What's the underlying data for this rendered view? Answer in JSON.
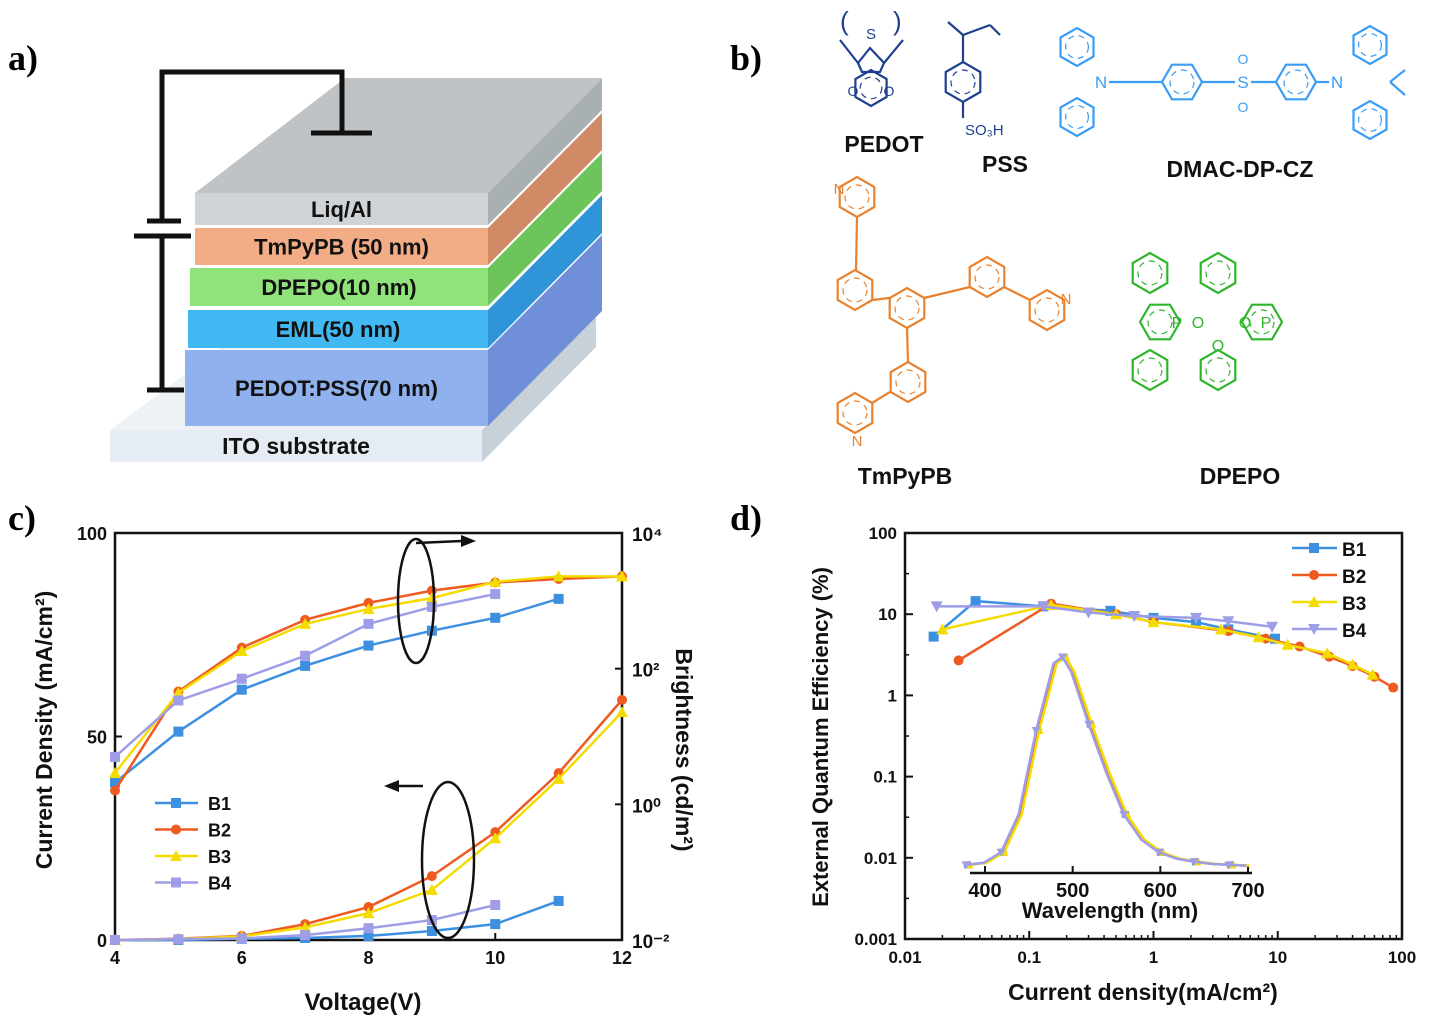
{
  "panel_labels": [
    "a)",
    "b)",
    "c)",
    "d)"
  ],
  "device": {
    "layers": [
      {
        "label": "Liq/Al",
        "color": "#cfd3d5",
        "side": "#a9b0b2",
        "top": "#bfc3c5"
      },
      {
        "label": "TmPyPB (50 nm)",
        "color": "#f3ad86",
        "side": "#d08a66"
      },
      {
        "label": "DPEPO(10 nm)",
        "color": "#90e27a",
        "side": "#6cc45a"
      },
      {
        "label": "EML(50 nm)",
        "color": "#41b8f2",
        "side": "#2f95d8"
      },
      {
        "label": "PEDOT:PSS(70 nm)",
        "color": "#8fb2ee",
        "side": "#6f90d8"
      },
      {
        "label": "ITO substrate",
        "color": "#e6ecf3",
        "side": "#c8d0d8"
      }
    ]
  },
  "molecules": [
    {
      "name": "PEDOT",
      "color": "#1f3f8f"
    },
    {
      "name": "PSS",
      "color": "#1f3f8f",
      "group": "SO₃H"
    },
    {
      "name": "DMAC-DP-CZ",
      "color": "#3a9cf5"
    },
    {
      "name": "TmPyPB",
      "color": "#e8822e"
    },
    {
      "name": "DPEPO",
      "color": "#2fb52a"
    }
  ],
  "atoms": {
    "s": "S",
    "o": "O",
    "n": "N",
    "p": "P"
  },
  "chart_data": [
    {
      "type": "line",
      "panel": "c",
      "xlabel": "Voltage(V)",
      "ylabel": "Current Density (mA/cm²)",
      "y2label": "Brightness (cd/m²)",
      "xlim": [
        4,
        12
      ],
      "ylim": [
        0,
        100
      ],
      "y2lim": [
        0.01,
        10000
      ],
      "y2scale": "log",
      "xticks": [
        "4",
        "6",
        "8",
        "10",
        "12"
      ],
      "yticks": [
        "0",
        "50",
        "100"
      ],
      "y2ticks": [
        "10⁻²",
        "10⁰",
        "10²",
        "10⁴"
      ],
      "legend": "left-middle",
      "x": [
        4,
        5,
        6,
        7,
        8,
        9,
        10,
        11,
        12
      ],
      "series": [
        {
          "name": "B1",
          "color": "#3d8fe0",
          "marker": "square",
          "current_density": [
            0,
            0,
            0.3,
            0.5,
            1,
            2.2,
            3.9,
            9.6,
            null
          ],
          "brightness": [
            2.1,
            11.8,
            49,
            110,
            219,
            363,
            562,
            1070,
            null
          ]
        },
        {
          "name": "B2",
          "color": "#ee5a20",
          "marker": "circle",
          "current_density": [
            0,
            0.3,
            1,
            3.9,
            8.1,
            15.7,
            26.5,
            41,
            59
          ],
          "brightness": [
            1.6,
            46,
            204,
            525,
            933,
            1413,
            1862,
            2100,
            2290
          ]
        },
        {
          "name": "B3",
          "color": "#f5dc00",
          "marker": "triangle-up",
          "current_density": [
            0,
            0.2,
            0.9,
            3.1,
            6.6,
            12.3,
            25,
            39.6,
            56
          ],
          "brightness": [
            2.9,
            44,
            182,
            457,
            759,
            1096,
            1905,
            2290,
            2290
          ]
        },
        {
          "name": "B4",
          "color": "#9e9ee8",
          "marker": "square",
          "current_density": [
            0,
            0.2,
            0.4,
            1.2,
            2.9,
            4.9,
            8.6,
            null,
            null
          ],
          "brightness": [
            5,
            34,
            71,
            155,
            457,
            813,
            1259,
            null,
            null
          ]
        }
      ]
    },
    {
      "type": "line",
      "panel": "d",
      "xlabel": "Current density(mA/cm²)",
      "ylabel": "External Quantum Efficiency (%)",
      "xscale": "log",
      "yscale": "log",
      "xlim": [
        0.01,
        100
      ],
      "ylim": [
        0.001,
        100
      ],
      "xticks": [
        "0.01",
        "0.1",
        "1",
        "10",
        "100"
      ],
      "yticks": [
        "0.001",
        "0.01",
        "0.1",
        "1",
        "10",
        "100"
      ],
      "legend": "top-right",
      "series": [
        {
          "name": "B1",
          "color": "#3d8fe0",
          "marker": "square",
          "points": [
            [
              0.017,
              5.3
            ],
            [
              0.037,
              14.5
            ],
            [
              0.13,
              12.5
            ],
            [
              0.45,
              11
            ],
            [
              1,
              9
            ],
            [
              2.2,
              8
            ],
            [
              4,
              6.5
            ],
            [
              9.5,
              5
            ]
          ]
        },
        {
          "name": "B2",
          "color": "#ee5a20",
          "marker": "circle",
          "points": [
            [
              0.027,
              2.7
            ],
            [
              0.15,
              13.5
            ],
            [
              0.5,
              10
            ],
            [
              1,
              8
            ],
            [
              4,
              6.2
            ],
            [
              8,
              5
            ],
            [
              15,
              4
            ],
            [
              26,
              3
            ],
            [
              40,
              2.3
            ],
            [
              60,
              1.7
            ],
            [
              85,
              1.25
            ]
          ]
        },
        {
          "name": "B3",
          "color": "#f5dc00",
          "marker": "triangle-up",
          "points": [
            [
              0.02,
              6.5
            ],
            [
              0.15,
              13
            ],
            [
              0.5,
              10
            ],
            [
              1,
              8
            ],
            [
              3.5,
              6.5
            ],
            [
              7,
              5.2
            ],
            [
              12,
              4.2
            ],
            [
              25,
              3.3
            ],
            [
              40,
              2.4
            ],
            [
              58,
              1.8
            ]
          ]
        },
        {
          "name": "B4",
          "color": "#9e9ee8",
          "marker": "triangle-down",
          "points": [
            [
              0.018,
              12.5
            ],
            [
              0.13,
              12.5
            ],
            [
              0.3,
              10.5
            ],
            [
              0.7,
              9.5
            ],
            [
              2.2,
              9
            ],
            [
              4,
              8.2
            ],
            [
              9,
              7
            ]
          ]
        }
      ],
      "inset": {
        "xlabel": "Wavelength (nm)",
        "xlim": [
          380,
          700
        ],
        "xticks": [
          "400",
          "500",
          "600",
          "700"
        ],
        "wavelength": [
          380,
          400,
          420,
          440,
          460,
          480,
          490,
          500,
          520,
          540,
          560,
          580,
          600,
          620,
          640,
          660,
          680,
          700
        ],
        "normalized_intensity": [
          0.01,
          0.02,
          0.07,
          0.25,
          0.65,
          0.97,
          1,
          0.93,
          0.68,
          0.45,
          0.25,
          0.13,
          0.07,
          0.04,
          0.025,
          0.015,
          0.01,
          0.006
        ]
      }
    }
  ]
}
